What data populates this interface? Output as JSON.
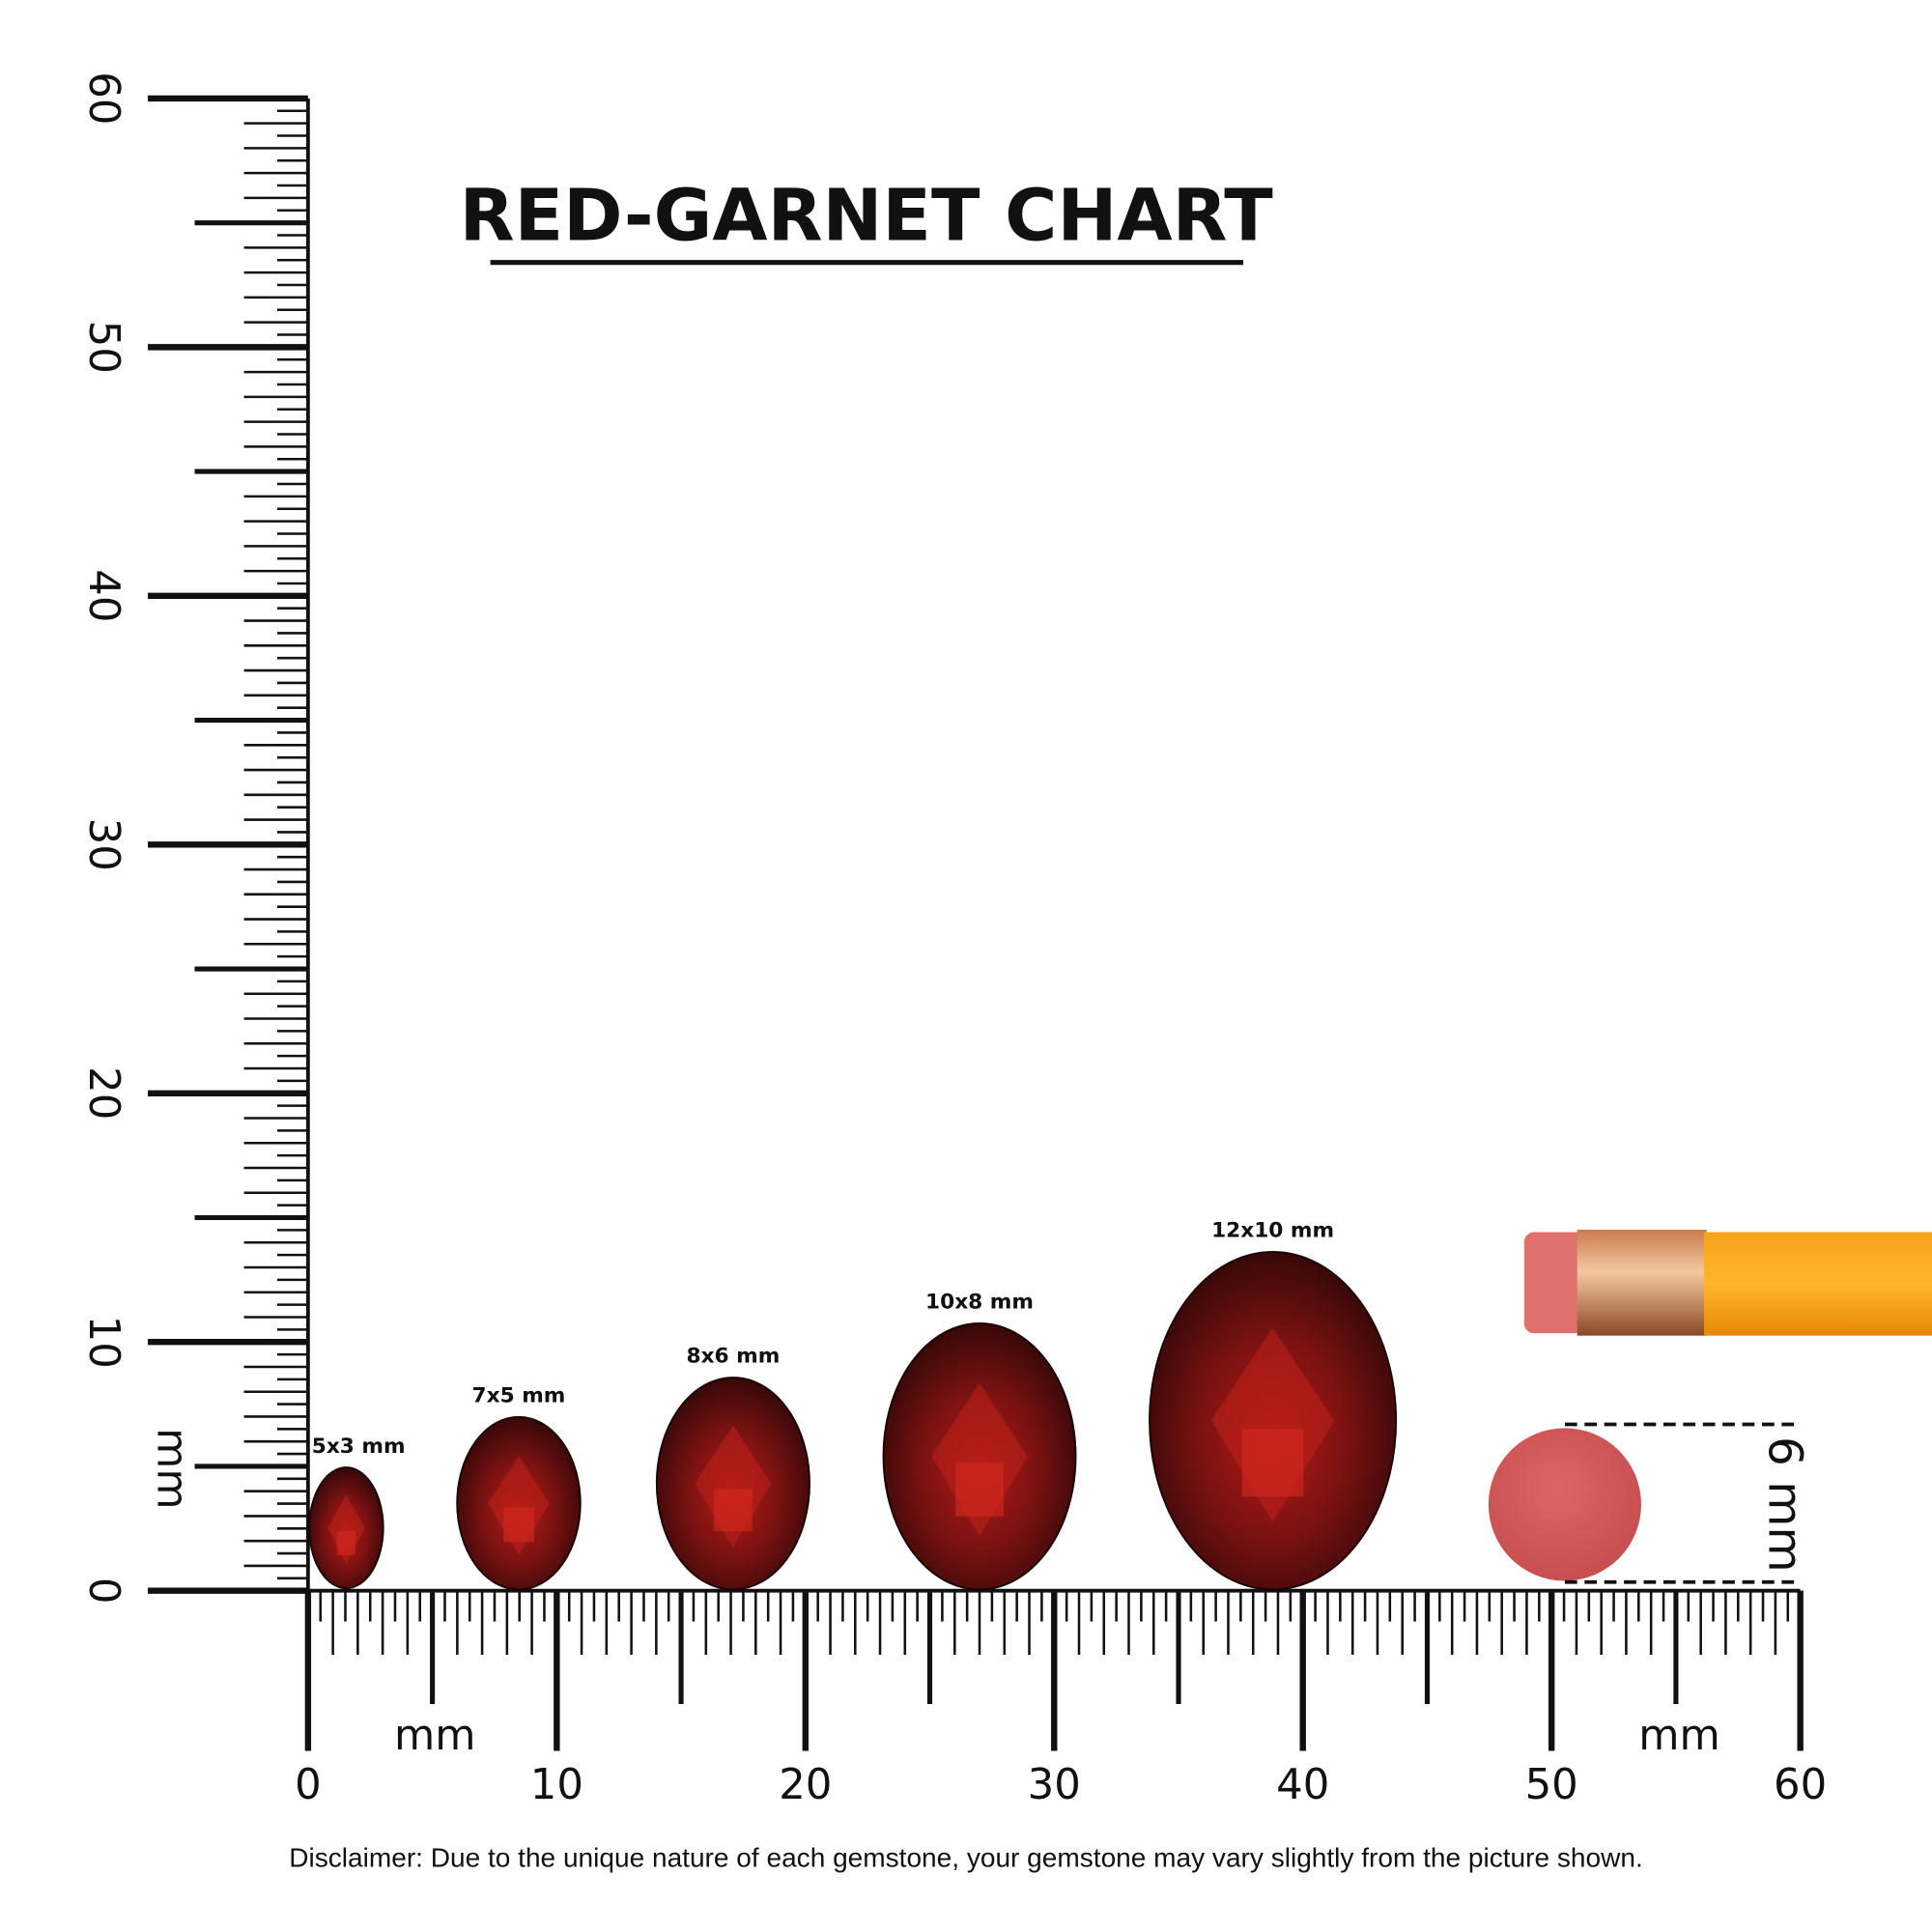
{
  "title": "RED-GARNET CHART",
  "vertical_ruler": {
    "labels": [
      0,
      10,
      20,
      30,
      40,
      50,
      60
    ],
    "unit": "mm"
  },
  "horizontal_ruler": {
    "labels": [
      0,
      10,
      20,
      30,
      40,
      50,
      60
    ],
    "unit": "mm",
    "unit_repeat": "mm"
  },
  "gems": [
    {
      "label": "5x3 mm"
    },
    {
      "label": "7x5 mm"
    },
    {
      "label": "8x6 mm"
    },
    {
      "label": "10x8 mm"
    },
    {
      "label": "12x10 mm"
    }
  ],
  "eraser_label": "6 mm",
  "disclaimer": "Disclaimer: Due to the unique nature of each gemstone, your gemstone may vary slightly from the picture shown."
}
